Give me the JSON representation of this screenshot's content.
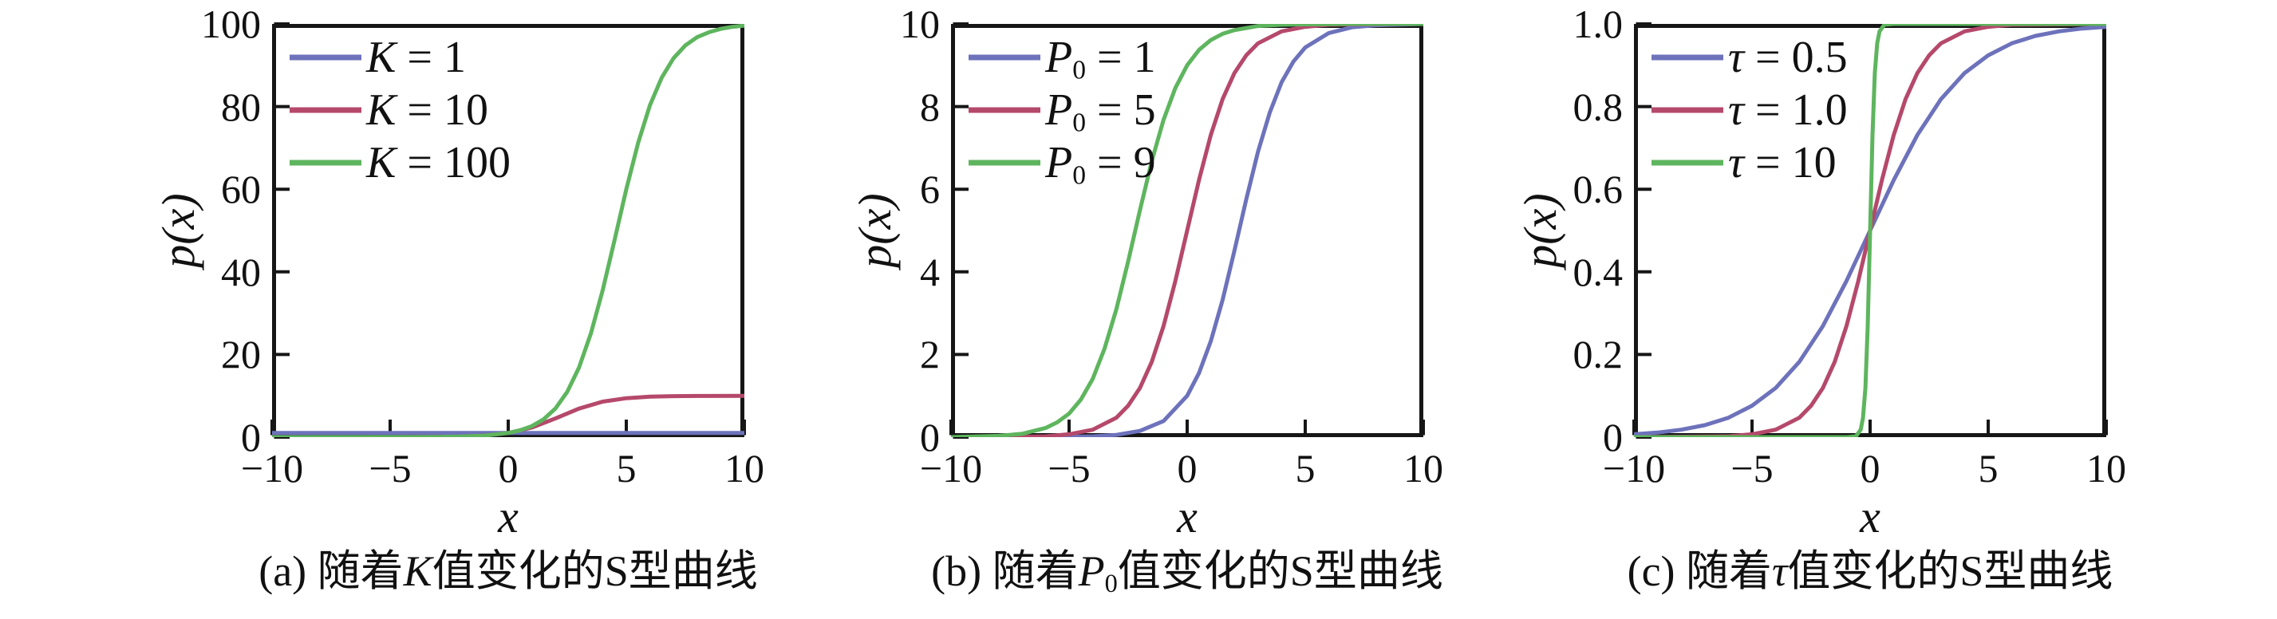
{
  "figure": {
    "background": "#ffffff",
    "text_color": "#111111",
    "axis_color": "#161616"
  },
  "chart_data": [
    {
      "type": "line",
      "caption": {
        "text": "(a) 随着K值变化的S型曲线",
        "prefix": "(a) 随着",
        "var": "K",
        "sub": "",
        "suffix": "值变化的S型曲线"
      },
      "xlabel": "x",
      "ylabel": "p(x)",
      "xlim": [
        -10,
        10
      ],
      "ylim": [
        0,
        100
      ],
      "grid": false,
      "legend_position": "upper-left",
      "xticks": {
        "values": [
          -10,
          -5,
          0,
          5,
          10
        ],
        "labels": [
          "−10",
          "−5",
          "0",
          "5",
          "10"
        ]
      },
      "yticks": {
        "values": [
          0,
          20,
          40,
          60,
          80,
          100
        ],
        "labels": [
          "0",
          "20",
          "40",
          "60",
          "80",
          "100"
        ]
      },
      "legend": [
        {
          "label": "K = 1",
          "var": "K",
          "sub": "",
          "rest": " = 1",
          "color": "#6d72bb"
        },
        {
          "label": "K = 10",
          "var": "K",
          "sub": "",
          "rest": " = 10",
          "color": "#b5496b"
        },
        {
          "label": "K = 100",
          "var": "K",
          "sub": "",
          "rest": " = 100",
          "color": "#5eb55e"
        }
      ],
      "series": [
        {
          "name": "K = 1",
          "color": "#6d72bb",
          "x": [
            -10,
            10
          ],
          "y": [
            1,
            1
          ]
        },
        {
          "name": "K = 10",
          "color": "#b5496b",
          "x": [
            -10,
            -8,
            -6,
            -5,
            -4,
            -3,
            -2,
            -1,
            0,
            1,
            2,
            3,
            4,
            5,
            6,
            7,
            8,
            10
          ],
          "y": [
            0,
            0.001,
            0.003,
            0.007,
            0.02,
            0.055,
            0.15,
            0.39,
            1,
            2.32,
            4.51,
            6.91,
            8.59,
            9.43,
            9.78,
            9.92,
            9.97,
            10
          ]
        },
        {
          "name": "K = 100",
          "color": "#5eb55e",
          "x": [
            -10,
            -5,
            -4,
            -3,
            -2,
            -1,
            0,
            0.5,
            1,
            1.5,
            2,
            2.5,
            3,
            3.5,
            4,
            4.5,
            5,
            5.5,
            6,
            6.5,
            7,
            7.5,
            8,
            8.5,
            9,
            9.5,
            10
          ],
          "y": [
            0,
            0.01,
            0.02,
            0.05,
            0.14,
            0.37,
            1,
            1.64,
            2.67,
            4.33,
            6.94,
            10.96,
            16.87,
            25.07,
            35.55,
            47.62,
            59.99,
            71.2,
            80.3,
            87.0,
            91.7,
            94.8,
            96.8,
            98.0,
            98.8,
            99.3,
            99.6
          ]
        }
      ]
    },
    {
      "type": "line",
      "caption": {
        "text": "(b) 随着P0值变化的S型曲线",
        "prefix": "(b) 随着",
        "var": "P",
        "sub": "0",
        "suffix": "值变化的S型曲线"
      },
      "xlabel": "x",
      "ylabel": "p(x)",
      "xlim": [
        -10,
        10
      ],
      "ylim": [
        0,
        10
      ],
      "grid": false,
      "legend_position": "upper-left",
      "xticks": {
        "values": [
          -10,
          -5,
          0,
          5,
          10
        ],
        "labels": [
          "−10",
          "−5",
          "0",
          "5",
          "10"
        ]
      },
      "yticks": {
        "values": [
          0,
          2,
          4,
          6,
          8,
          10
        ],
        "labels": [
          "0",
          "2",
          "4",
          "6",
          "8",
          "10"
        ]
      },
      "legend": [
        {
          "label": "P0 = 1",
          "var": "P",
          "sub": "0",
          "rest": " = 1",
          "color": "#6d72bb"
        },
        {
          "label": "P0 = 5",
          "var": "P",
          "sub": "0",
          "rest": " = 5",
          "color": "#b5496b"
        },
        {
          "label": "P0 = 9",
          "var": "P",
          "sub": "0",
          "rest": " = 9",
          "color": "#5eb55e"
        }
      ],
      "series": [
        {
          "name": "P0 = 1",
          "color": "#6d72bb",
          "x": [
            -10,
            -6,
            -5,
            -4,
            -3,
            -2,
            -1,
            0,
            0.5,
            1,
            1.5,
            2,
            2.5,
            3,
            3.5,
            4,
            4.5,
            5,
            6,
            7,
            8,
            10
          ],
          "y": [
            0,
            0.003,
            0.007,
            0.02,
            0.055,
            0.15,
            0.39,
            1,
            1.55,
            2.32,
            3.32,
            4.51,
            5.75,
            6.91,
            7.86,
            8.59,
            9.09,
            9.43,
            9.78,
            9.92,
            9.97,
            10
          ]
        },
        {
          "name": "P0 = 5",
          "color": "#b5496b",
          "x": [
            -10,
            -7,
            -6,
            -5,
            -4,
            -3,
            -2.5,
            -2,
            -1.5,
            -1,
            -0.5,
            0,
            0.5,
            1,
            1.5,
            2,
            2.5,
            3,
            4,
            5,
            6,
            7,
            10
          ],
          "y": [
            0,
            0.01,
            0.02,
            0.07,
            0.18,
            0.47,
            0.76,
            1.19,
            1.82,
            2.69,
            3.78,
            5,
            6.22,
            7.31,
            8.18,
            8.81,
            9.24,
            9.53,
            9.82,
            9.93,
            9.98,
            9.99,
            10
          ]
        },
        {
          "name": "P0 = 9",
          "color": "#5eb55e",
          "x": [
            -10,
            -8,
            -7,
            -6,
            -5.5,
            -5,
            -4.5,
            -4,
            -3.5,
            -3,
            -2.5,
            -2,
            -1.5,
            -1,
            -0.5,
            0,
            0.5,
            1,
            1.5,
            2,
            3,
            4,
            5,
            7,
            10
          ],
          "y": [
            0,
            0.03,
            0.08,
            0.22,
            0.36,
            0.57,
            0.91,
            1.41,
            2.14,
            3.09,
            4.25,
            5.49,
            6.68,
            7.68,
            8.45,
            9,
            9.37,
            9.61,
            9.76,
            9.85,
            9.95,
            9.98,
            9.99,
            10,
            10
          ]
        }
      ]
    },
    {
      "type": "line",
      "caption": {
        "text": "(c) 随着τ值变化的S型曲线",
        "prefix": "(c) 随着",
        "var": "τ",
        "sub": "",
        "suffix": "值变化的S型曲线"
      },
      "xlabel": "x",
      "ylabel": "p(x)",
      "xlim": [
        -10,
        10
      ],
      "ylim": [
        0,
        1.0
      ],
      "grid": false,
      "legend_position": "upper-left",
      "xticks": {
        "values": [
          -10,
          -5,
          0,
          5,
          10
        ],
        "labels": [
          "−10",
          "−5",
          "0",
          "5",
          "10"
        ]
      },
      "yticks": {
        "values": [
          0,
          0.2,
          0.4,
          0.6,
          0.8,
          1.0
        ],
        "labels": [
          "0",
          "0.2",
          "0.4",
          "0.6",
          "0.8",
          "1.0"
        ]
      },
      "legend": [
        {
          "label": "τ = 0.5",
          "var": "τ",
          "sub": "",
          "rest": " = 0.5",
          "color": "#6d72bb"
        },
        {
          "label": "τ = 1.0",
          "var": "τ",
          "sub": "",
          "rest": " = 1.0",
          "color": "#b5496b"
        },
        {
          "label": "τ = 10",
          "var": "τ",
          "sub": "",
          "rest": " = 10",
          "color": "#5eb55e"
        }
      ],
      "series": [
        {
          "name": "τ = 0.5",
          "color": "#6d72bb",
          "x": [
            -10,
            -9,
            -8,
            -7,
            -6,
            -5,
            -4,
            -3,
            -2,
            -1,
            0,
            1,
            2,
            3,
            4,
            5,
            6,
            7,
            8,
            9,
            10
          ],
          "y": [
            0.007,
            0.011,
            0.018,
            0.029,
            0.047,
            0.076,
            0.119,
            0.182,
            0.269,
            0.378,
            0.5,
            0.622,
            0.731,
            0.818,
            0.881,
            0.924,
            0.953,
            0.971,
            0.982,
            0.989,
            0.993
          ]
        },
        {
          "name": "τ = 1.0",
          "color": "#b5496b",
          "x": [
            -10,
            -6,
            -5,
            -4,
            -3,
            -2.5,
            -2,
            -1.5,
            -1,
            -0.5,
            0,
            0.5,
            1,
            1.5,
            2,
            2.5,
            3,
            4,
            5,
            6,
            10
          ],
          "y": [
            0,
            0.002,
            0.007,
            0.018,
            0.047,
            0.076,
            0.119,
            0.182,
            0.269,
            0.378,
            0.5,
            0.622,
            0.731,
            0.818,
            0.881,
            0.924,
            0.953,
            0.982,
            0.993,
            0.998,
            1
          ]
        },
        {
          "name": "τ = 10",
          "color": "#5eb55e",
          "x": [
            -10,
            -1,
            -0.6,
            -0.4,
            -0.3,
            -0.2,
            -0.1,
            0,
            0.1,
            0.2,
            0.3,
            0.4,
            0.6,
            1,
            10
          ],
          "y": [
            0,
            0,
            0.002,
            0.018,
            0.047,
            0.119,
            0.269,
            0.5,
            0.731,
            0.881,
            0.953,
            0.982,
            0.998,
            1,
            1
          ]
        }
      ]
    }
  ]
}
